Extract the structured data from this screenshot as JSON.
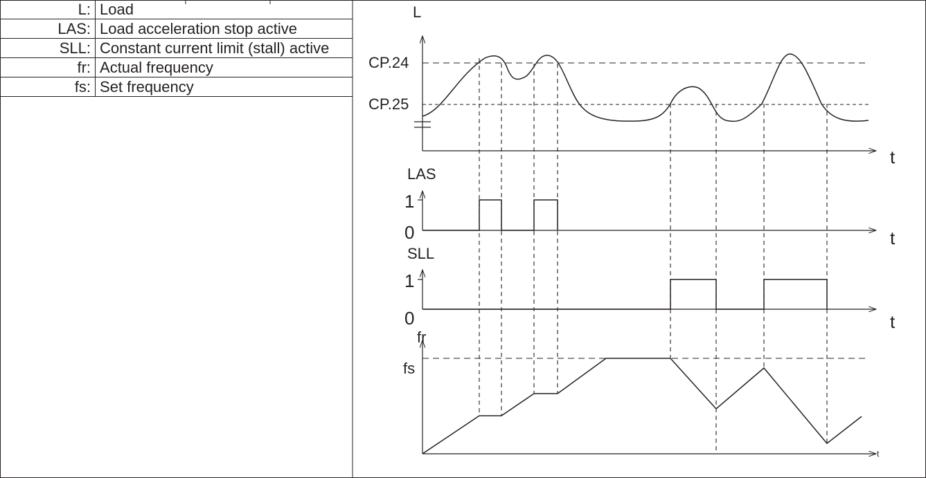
{
  "legend": {
    "items": [
      {
        "abbr": "L:",
        "desc": "Load"
      },
      {
        "abbr": "LAS:",
        "desc": "Load acceleration stop active"
      },
      {
        "abbr": "SLL:",
        "desc": "Constant current limit (stall) active"
      },
      {
        "abbr": "fr:",
        "desc": "Actual frequency"
      },
      {
        "abbr": "fs:",
        "desc": "Set frequency"
      }
    ]
  },
  "diagram": {
    "load_axis_label": "L",
    "cp24_label": "CP.24",
    "cp25_label": "CP.25",
    "las_axis_label": "LAS",
    "sll_axis_label": "SLL",
    "fr_axis_label": "fr",
    "fs_label": "fs",
    "one_label": "1",
    "zero_label": "0",
    "time_label": "t",
    "time_label_small": "t"
  }
}
